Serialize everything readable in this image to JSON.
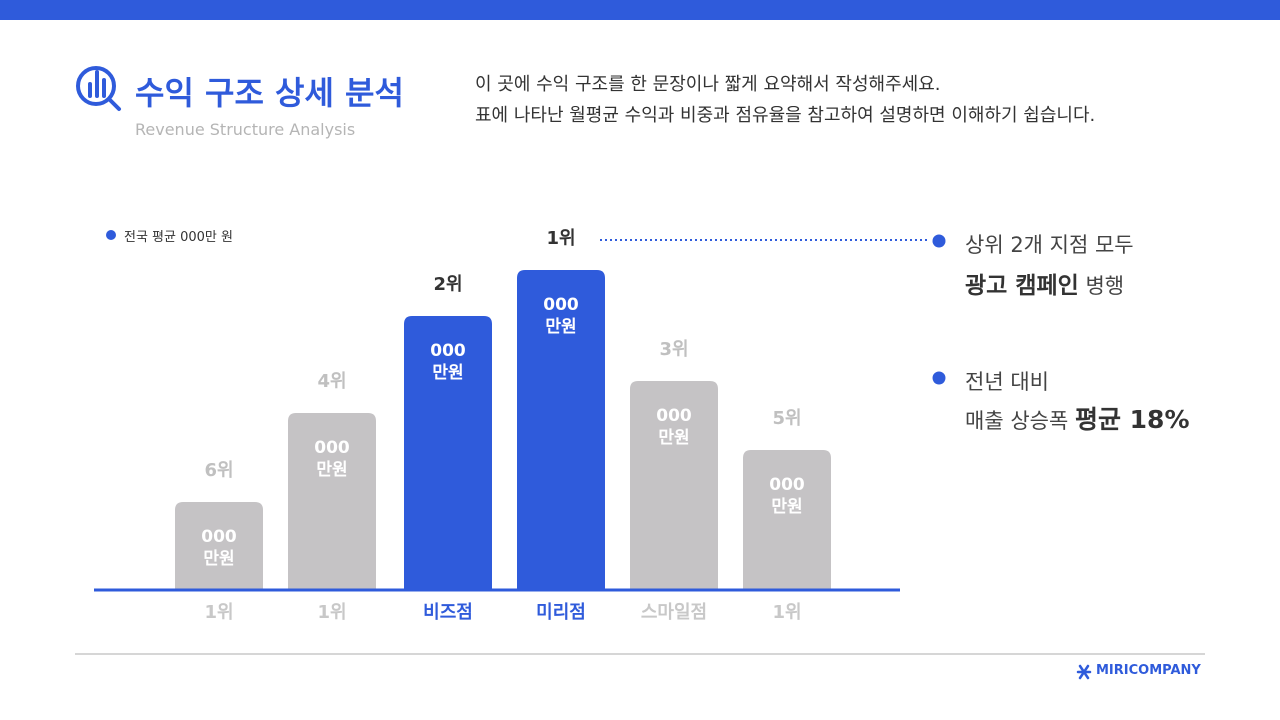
{
  "header": {
    "title": "수익 구조 상세 분석",
    "subtitle": "Revenue Structure Analysis"
  },
  "description": [
    "이 곳에 수익 구조를 한 문장이나 짧게 요약해서 작성해주세요.",
    "표에 나타난 월평균 수익과 비중과 점유율을 참고하여 설명하면 이해하기 쉽습니다."
  ],
  "chart_data": {
    "type": "bar",
    "legend": "전국 평균 000만 원",
    "categories": [
      "1위",
      "1위",
      "비즈점",
      "미리점",
      "스마일점",
      "1위"
    ],
    "rank_labels": [
      "6위",
      "4위",
      "2위",
      "1위",
      "3위",
      "5위"
    ],
    "values": [
      88,
      177,
      274,
      320,
      209,
      140
    ],
    "value_labels": [
      "000\n만원",
      "000\n만원",
      "000\n만원",
      "000\n만원",
      "000\n만원",
      "000\n만원"
    ],
    "colors": [
      "#c5c3c5",
      "#c5c3c5",
      "#2f5bdb",
      "#2f5bdb",
      "#c5c3c5",
      "#c5c3c5"
    ],
    "ylim": [
      0,
      340
    ]
  },
  "callouts": [
    {
      "line1": "상위 2개 지점 모두",
      "bold": "광고 캠페인",
      "rest": " 병행"
    },
    {
      "line1": "전년 대비",
      "rest": "매출 상승폭 ",
      "bold": "평균 18%"
    }
  ],
  "footer": {
    "brand": "MIRICOMPANY"
  }
}
